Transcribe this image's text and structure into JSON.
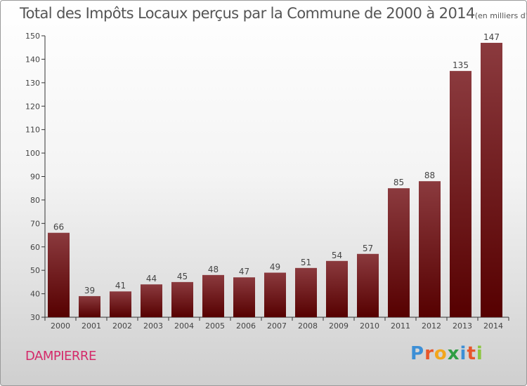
{
  "title": "Total des Impôts Locaux perçus par la Commune de 2000 à 2014",
  "title_unit": "(en milliers d'€)",
  "commune": "DAMPIERRE",
  "logo": {
    "text": "Proxiti",
    "letters": [
      "P",
      "r",
      "o",
      "x",
      "i",
      "t",
      "i"
    ],
    "colors": [
      "#3d8fd6",
      "#e8562a",
      "#f2a61c",
      "#2f9e44",
      "#3d8fd6",
      "#e8562a",
      "#8cc63f"
    ]
  },
  "colors": {
    "bar_light": "#8b3a3e",
    "bar_dark": "#560000",
    "axis": "#333333",
    "text": "#555555"
  },
  "chart_data": {
    "type": "bar",
    "title": "Total des Impôts Locaux perçus par la Commune de 2000 à 2014",
    "xlabel": "",
    "ylabel": "",
    "ylim": [
      30,
      150
    ],
    "yticks": [
      30,
      40,
      50,
      60,
      70,
      80,
      90,
      100,
      110,
      120,
      130,
      140,
      150
    ],
    "grid": false,
    "categories": [
      "2000",
      "2001",
      "2002",
      "2003",
      "2004",
      "2005",
      "2006",
      "2007",
      "2008",
      "2009",
      "2010",
      "2011",
      "2012",
      "2013",
      "2014"
    ],
    "values": [
      66,
      39,
      41,
      44,
      45,
      48,
      47,
      49,
      51,
      54,
      57,
      85,
      88,
      135,
      147
    ]
  }
}
